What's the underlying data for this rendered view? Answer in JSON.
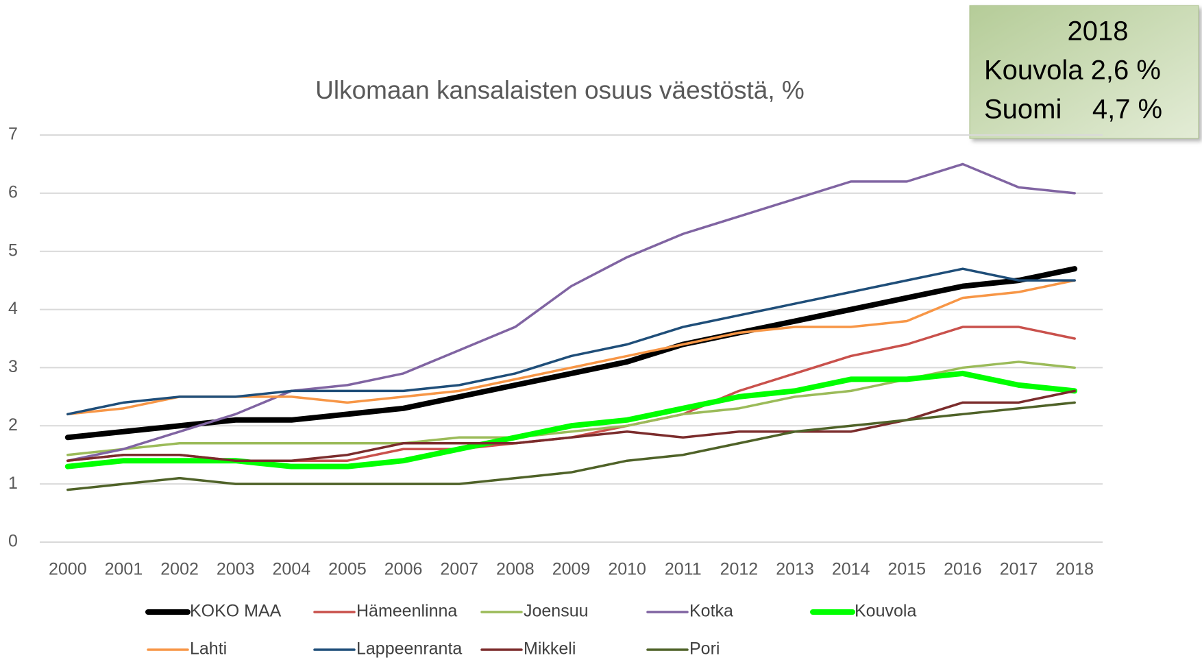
{
  "chart_data": {
    "type": "line",
    "title": "Ulkomaan kansalaisten osuus väestöstä, %",
    "categories": [
      "2000",
      "2001",
      "2002",
      "2003",
      "2004",
      "2005",
      "2006",
      "2007",
      "2008",
      "2009",
      "2010",
      "2011",
      "2012",
      "2013",
      "2014",
      "2015",
      "2016",
      "2017",
      "2018"
    ],
    "ylim": [
      0,
      7
    ],
    "yticks": [
      0,
      1,
      2,
      3,
      4,
      5,
      6,
      7
    ],
    "grid": true,
    "legend": "bottom",
    "annotation": [
      "2018",
      "Kouvola 2,6 %",
      "Suomi    4,7 %"
    ],
    "series": [
      {
        "name": "KOKO MAA",
        "color": "#000000",
        "line_width": 8,
        "values": [
          1.8,
          1.9,
          2.0,
          2.1,
          2.1,
          2.2,
          2.3,
          2.5,
          2.7,
          2.9,
          3.1,
          3.4,
          3.6,
          3.8,
          4.0,
          4.2,
          4.4,
          4.5,
          4.7
        ]
      },
      {
        "name": "Hämeenlinna",
        "color": "#c9514c",
        "line_width": 3.5,
        "values": [
          1.4,
          1.5,
          1.5,
          1.4,
          1.4,
          1.4,
          1.6,
          1.6,
          1.7,
          1.8,
          2.0,
          2.2,
          2.6,
          2.9,
          3.2,
          3.4,
          3.7,
          3.7,
          3.5
        ]
      },
      {
        "name": "Joensuu",
        "color": "#9bbb59",
        "line_width": 3.5,
        "values": [
          1.5,
          1.6,
          1.7,
          1.7,
          1.7,
          1.7,
          1.7,
          1.8,
          1.8,
          1.9,
          2.0,
          2.2,
          2.3,
          2.5,
          2.6,
          2.8,
          3.0,
          3.1,
          3.0
        ]
      },
      {
        "name": "Kotka",
        "color": "#8064a2",
        "line_width": 3.5,
        "values": [
          1.4,
          1.6,
          1.9,
          2.2,
          2.6,
          2.7,
          2.9,
          3.3,
          3.7,
          4.4,
          4.9,
          5.3,
          5.6,
          5.9,
          6.2,
          6.2,
          6.5,
          6.1,
          6.0
        ]
      },
      {
        "name": "Kouvola",
        "color": "#00ff00",
        "line_width": 8,
        "values": [
          1.3,
          1.4,
          1.4,
          1.4,
          1.3,
          1.3,
          1.4,
          1.6,
          1.8,
          2.0,
          2.1,
          2.3,
          2.5,
          2.6,
          2.8,
          2.8,
          2.9,
          2.7,
          2.6
        ]
      },
      {
        "name": "Lahti",
        "color": "#f79646",
        "line_width": 3.5,
        "values": [
          2.2,
          2.3,
          2.5,
          2.5,
          2.5,
          2.4,
          2.5,
          2.6,
          2.8,
          3.0,
          3.2,
          3.4,
          3.6,
          3.7,
          3.7,
          3.8,
          4.2,
          4.3,
          4.5
        ]
      },
      {
        "name": "Lappeenranta",
        "color": "#1f4e79",
        "line_width": 3.5,
        "values": [
          2.2,
          2.4,
          2.5,
          2.5,
          2.6,
          2.6,
          2.6,
          2.7,
          2.9,
          3.2,
          3.4,
          3.7,
          3.9,
          4.1,
          4.3,
          4.5,
          4.7,
          4.5,
          4.5
        ]
      },
      {
        "name": "Mikkeli",
        "color": "#7b2c2c",
        "line_width": 3.5,
        "values": [
          1.4,
          1.5,
          1.5,
          1.4,
          1.4,
          1.5,
          1.7,
          1.7,
          1.7,
          1.8,
          1.9,
          1.8,
          1.9,
          1.9,
          1.9,
          2.1,
          2.4,
          2.4,
          2.6
        ]
      },
      {
        "name": "Pori",
        "color": "#4f6228",
        "line_width": 3.5,
        "values": [
          0.9,
          1.0,
          1.1,
          1.0,
          1.0,
          1.0,
          1.0,
          1.0,
          1.1,
          1.2,
          1.4,
          1.5,
          1.7,
          1.9,
          2.0,
          2.1,
          2.2,
          2.3,
          2.4
        ]
      }
    ]
  }
}
